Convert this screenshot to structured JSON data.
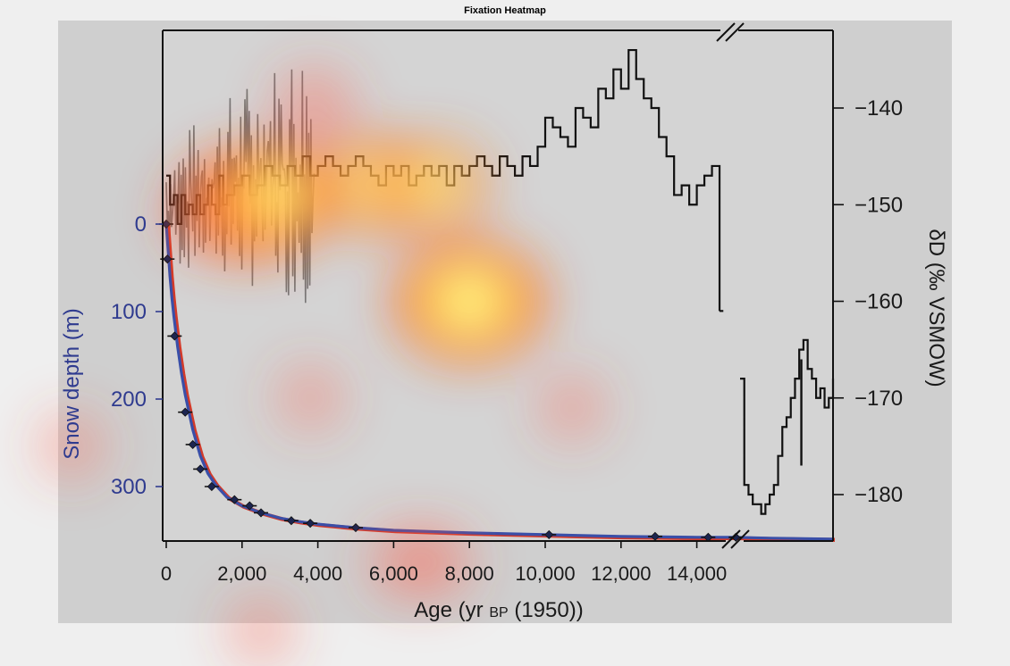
{
  "figure": {
    "title": "Fixation Heatmap"
  },
  "chart_data": {
    "type": "line",
    "title": "Fixation Heatmap",
    "xlabel": "Age (yr",
    "xlabel_sub": "BP",
    "xlabel_tail": "(1950))",
    "ylabel_left": "Snow depth (m)",
    "ylabel_right": "δD (‰ VSMOW)",
    "x_ticks": [
      "0",
      "2,000",
      "4,000",
      "6,000",
      "8,000",
      "10,000",
      "12,000",
      "14,000"
    ],
    "y_left_ticks": [
      "0",
      "100",
      "200",
      "300"
    ],
    "y_right_ticks": [
      "−140",
      "−150",
      "−160",
      "−170",
      "−180"
    ],
    "xlim": [
      0,
      17500
    ],
    "ylim_left": [
      -120,
      360
    ],
    "ylim_right": [
      -133,
      -185
    ],
    "axis_break": "between 15000 and 15300 yr",
    "depth_age_model": {
      "name": "depth-age curve",
      "color": "#3a4fa8",
      "x": [
        0,
        50,
        100,
        150,
        200,
        300,
        400,
        500,
        700,
        900,
        1100,
        1300,
        1600,
        2000,
        2500,
        3000,
        3500,
        4000,
        5000,
        6000,
        8000,
        10000,
        12000,
        14000,
        15000,
        16000,
        17500
      ],
      "y": [
        0,
        30,
        60,
        85,
        105,
        140,
        170,
        195,
        235,
        265,
        285,
        298,
        312,
        322,
        330,
        336,
        340,
        343,
        347,
        350,
        353,
        355,
        357,
        358,
        358,
        359,
        360
      ]
    },
    "depth_tie_points": {
      "name": "tie points",
      "x": [
        0,
        30,
        220,
        500,
        700,
        900,
        1200,
        1800,
        2200,
        2500,
        3300,
        3800,
        5000,
        10100,
        12900,
        14300,
        15200
      ],
      "y": [
        0,
        40,
        128,
        215,
        252,
        280,
        300,
        315,
        322,
        330,
        339,
        342,
        347,
        355,
        357,
        358,
        358
      ]
    },
    "isotope_record": {
      "name": "δD",
      "color": "#111111",
      "x": [
        0,
        100,
        200,
        300,
        400,
        500,
        600,
        700,
        800,
        900,
        1000,
        1100,
        1200,
        1300,
        1400,
        1500,
        1600,
        1800,
        2000,
        2200,
        2400,
        2600,
        2800,
        3000,
        3200,
        3400,
        3600,
        3800,
        4000,
        4200,
        4400,
        4600,
        4800,
        5000,
        5200,
        5400,
        5600,
        5800,
        6000,
        6200,
        6400,
        6600,
        6800,
        7000,
        7200,
        7400,
        7600,
        7800,
        8000,
        8200,
        8400,
        8600,
        8800,
        9000,
        9200,
        9400,
        9600,
        9800,
        10000,
        10200,
        10400,
        10600,
        10800,
        11000,
        11200,
        11400,
        11600,
        11800,
        12000,
        12200,
        12400,
        12600,
        12800,
        13000,
        13200,
        13400,
        13600,
        13800,
        14000,
        14200,
        14400,
        14600
      ],
      "y": [
        -147,
        -150,
        -149,
        -152,
        -149,
        -151,
        -150,
        -151,
        -149,
        -151,
        -150,
        -148,
        -150,
        -151,
        -147,
        -150,
        -149,
        -148,
        -147,
        -149,
        -148,
        -146,
        -147,
        -148,
        -146,
        -147,
        -145,
        -147,
        -146,
        -145,
        -146,
        -147,
        -146,
        -145,
        -146,
        -147,
        -148,
        -146,
        -147,
        -146,
        -148,
        -147,
        -146,
        -147,
        -146,
        -148,
        -146,
        -147,
        -146,
        -145,
        -146,
        -147,
        -145,
        -146,
        -147,
        -145,
        -146,
        -144,
        -141,
        -142,
        -143,
        -144,
        -140,
        -141,
        -142,
        -138,
        -139,
        -136,
        -138,
        -134,
        -137,
        -139,
        -140,
        -143,
        -145,
        -149,
        -148,
        -150,
        -148,
        -147,
        -146,
        -161
      ]
    },
    "isotope_record_late": {
      "name": "δD (after break)",
      "color": "#111111",
      "x": [
        15300,
        15400,
        15500,
        15600,
        15700,
        15800,
        15900,
        16000,
        16100,
        16200,
        16300,
        16400,
        16500,
        16600,
        16700,
        16800,
        16900,
        17000,
        17100,
        17200,
        17300,
        17400,
        17500
      ],
      "y": [
        -168,
        -179,
        -180,
        -181,
        -181,
        -182,
        -181,
        -180,
        -179,
        -176,
        -173,
        -172,
        -170,
        -168,
        -165,
        -164,
        -167,
        -168,
        -170,
        -169,
        -171,
        -170,
        -168
      ]
    },
    "isotope_hires": {
      "name": "δD high-resolution",
      "color": "#666666",
      "x0": 0,
      "x1": 3900,
      "n": 140
    },
    "heatmap_fixations": {
      "name": "fixations",
      "points": [
        {
          "x": 8000,
          "y": -160,
          "intensity": 1.0
        },
        {
          "x": 2200,
          "y": -150,
          "intensity": 0.85
        },
        {
          "x": 3000,
          "y": -149,
          "intensity": 0.6
        },
        {
          "x": 5500,
          "y": -148,
          "intensity": 0.6
        },
        {
          "x": 7000,
          "y": -148,
          "intensity": 0.5
        },
        {
          "x": 3900,
          "y": -140,
          "intensity": 0.45
        },
        {
          "x": 1000,
          "y": -151,
          "intensity": 0.35
        },
        {
          "x": 3800,
          "y": -170,
          "intensity": 0.25
        },
        {
          "x": 10700,
          "y": -171,
          "intensity": 0.25
        },
        {
          "x": 6300,
          "y": -187,
          "intensity": 0.35
        },
        {
          "x": 7200,
          "y": -187,
          "intensity": 0.3
        },
        {
          "x": 2500,
          "y": -194,
          "intensity": 0.25
        },
        {
          "x": -2500,
          "y": -175,
          "intensity": 0.25
        }
      ]
    },
    "grid": false,
    "legend": "none"
  }
}
